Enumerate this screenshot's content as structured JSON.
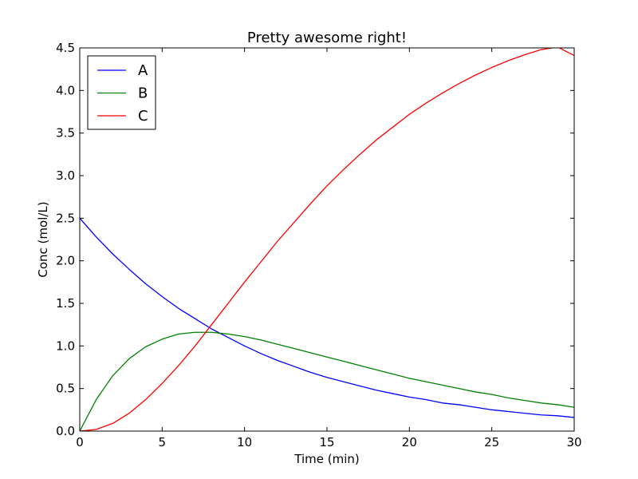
{
  "chart_data": {
    "type": "line",
    "title": "Pretty awesome right!",
    "xlabel": "Time (min)",
    "ylabel": "Conc (mol/L)",
    "xlim": [
      0,
      30
    ],
    "ylim": [
      0,
      4.5
    ],
    "xticks": [
      0,
      5,
      10,
      15,
      20,
      25,
      30
    ],
    "xtick_labels": [
      "0",
      "5",
      "10",
      "15",
      "20",
      "25",
      "30"
    ],
    "yticks": [
      0,
      0.5,
      1,
      1.5,
      2,
      2.5,
      3,
      3.5,
      4,
      4.5
    ],
    "ytick_labels": [
      "0.0",
      "0.5",
      "1.0",
      "1.5",
      "2.0",
      "2.5",
      "3.0",
      "3.5",
      "4.0",
      "4.5"
    ],
    "grid": false,
    "legend_position": "top-left",
    "x": [
      0,
      1,
      2,
      3,
      4,
      5,
      6,
      7,
      8,
      9,
      10,
      11,
      12,
      13,
      14,
      15,
      16,
      17,
      18,
      19,
      20,
      21,
      22,
      23,
      24,
      25,
      26,
      27,
      28,
      29,
      30
    ],
    "series": [
      {
        "name": "A",
        "color": "#0000ff",
        "values": [
          2.5,
          2.28,
          2.08,
          1.9,
          1.73,
          1.58,
          1.44,
          1.32,
          1.2,
          1.1,
          1.0,
          0.91,
          0.83,
          0.76,
          0.69,
          0.63,
          0.58,
          0.53,
          0.48,
          0.44,
          0.4,
          0.37,
          0.33,
          0.31,
          0.28,
          0.25,
          0.23,
          0.21,
          0.19,
          0.18,
          0.16
        ]
      },
      {
        "name": "B",
        "color": "#008000",
        "values": [
          0.0,
          0.37,
          0.65,
          0.85,
          0.99,
          1.08,
          1.14,
          1.16,
          1.16,
          1.14,
          1.11,
          1.07,
          1.02,
          0.97,
          0.92,
          0.87,
          0.82,
          0.77,
          0.72,
          0.67,
          0.62,
          0.58,
          0.54,
          0.5,
          0.46,
          0.43,
          0.39,
          0.36,
          0.33,
          0.31,
          0.28
        ]
      },
      {
        "name": "C",
        "color": "#ff0000",
        "values": [
          0.0,
          0.02,
          0.09,
          0.21,
          0.37,
          0.56,
          0.77,
          1.0,
          1.25,
          1.5,
          1.75,
          1.99,
          2.23,
          2.45,
          2.67,
          2.88,
          3.07,
          3.25,
          3.42,
          3.57,
          3.72,
          3.85,
          3.97,
          4.08,
          4.18,
          4.27,
          4.35,
          4.42,
          4.48,
          4.51,
          4.41
        ]
      }
    ]
  }
}
